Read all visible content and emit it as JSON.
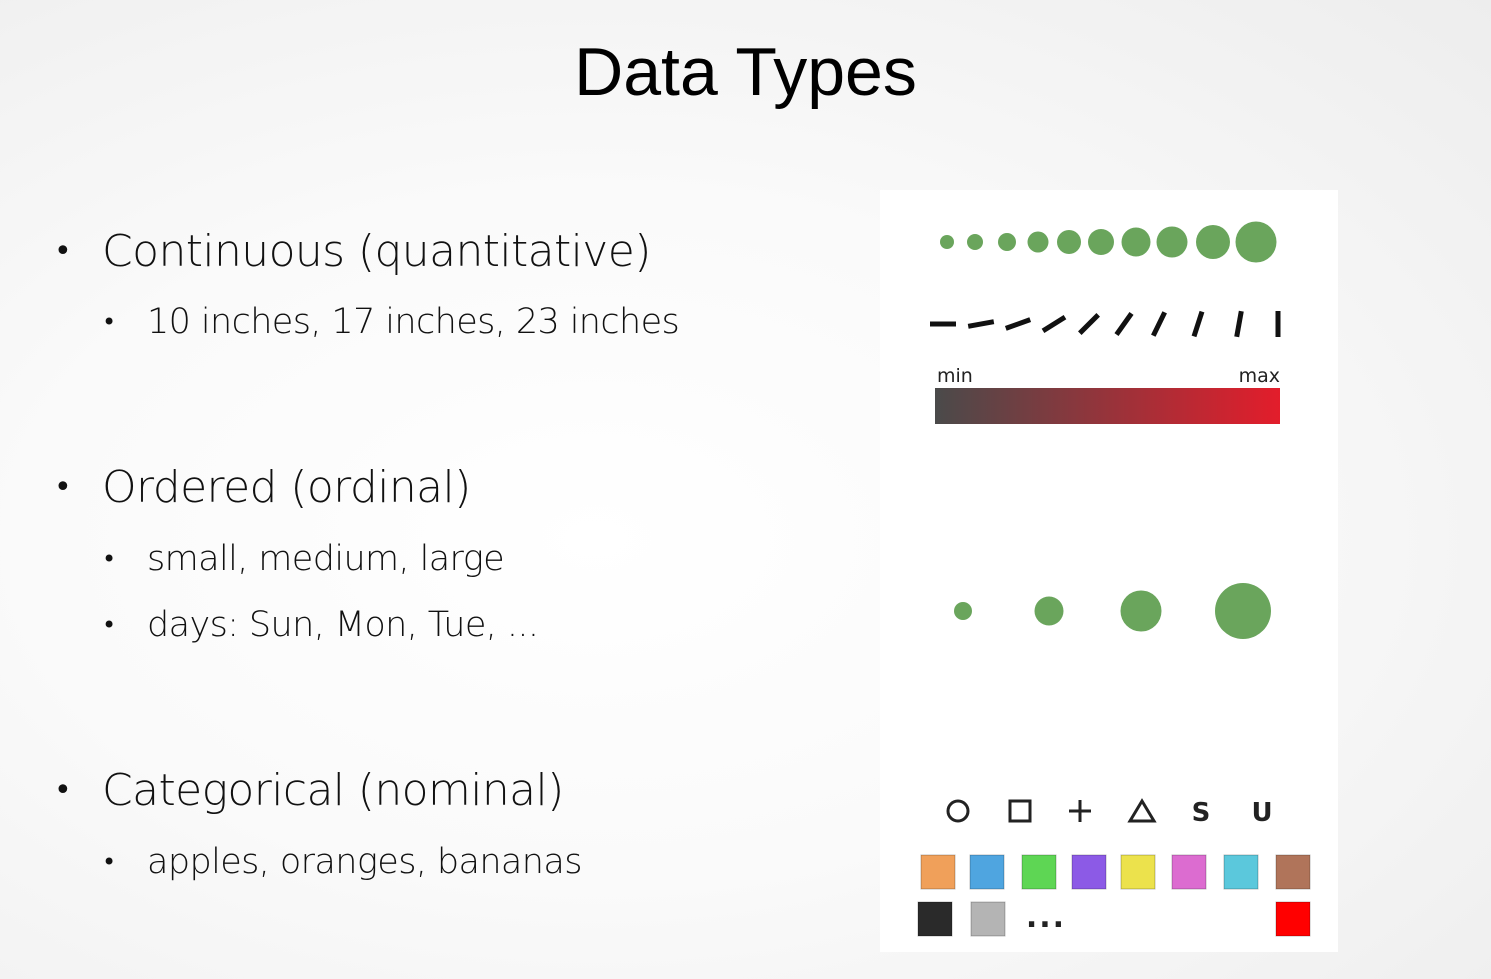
{
  "slide": {
    "title": "Data Types"
  },
  "bullets": [
    {
      "label": "Continuous (quantitative)",
      "sub": [
        "10 inches, 17 inches, 23 inches"
      ]
    },
    {
      "label": "Ordered (ordinal)",
      "sub": [
        "small, medium, large",
        "days: Sun, Mon, Tue, ..."
      ]
    },
    {
      "label": "Categorical (nominal)",
      "sub": [
        "apples, oranges, bananas"
      ]
    }
  ],
  "figure": {
    "continuous_colorbar": {
      "min_label": "min",
      "max_label": "max",
      "colors": [
        "#4a4a4a",
        "#e31d2b"
      ]
    },
    "dot_color": "#6aa55c",
    "ordinal_dot_count": 4,
    "shapes": [
      "circle",
      "square",
      "plus",
      "triangle",
      "S",
      "U"
    ],
    "shape_letters": [
      "S",
      "U"
    ],
    "swatches": [
      "#f0a05a",
      "#4fa5e0",
      "#5ed654",
      "#8c5ae6",
      "#ece24c",
      "#dc6cd0",
      "#5bc8dc",
      "#b0745a",
      "#2a2a2a",
      "#b4b4b4",
      "#ff0000"
    ],
    "ellipsis": "..."
  }
}
